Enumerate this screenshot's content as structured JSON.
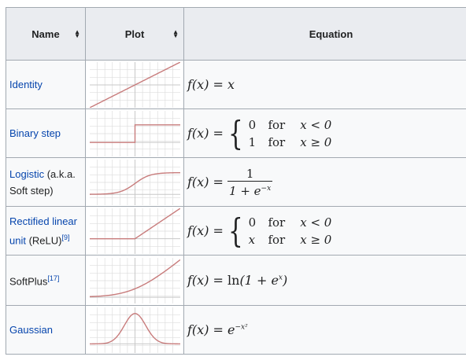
{
  "headers": {
    "name": "Name",
    "plot": "Plot",
    "equation": "Equation"
  },
  "rows": [
    {
      "name": "Identity",
      "plot": "identity-curve-icon",
      "eq": "f(x) = x"
    },
    {
      "name": "Binary step",
      "plot": "binary-step-curve-icon",
      "lhs": "f(x) =",
      "c1v": "0",
      "c1f": "for",
      "c1c": "x < 0",
      "c2v": "1",
      "c2f": "for",
      "c2c": "x ≥ 0"
    },
    {
      "name": "Logistic",
      "name_note": " (a.k.a. Soft step)",
      "plot": "logistic-curve-icon",
      "lhs": "f(x) =",
      "num": "1",
      "den": "1 + e",
      "den_sup": "−x"
    },
    {
      "name": "Rectified linear unit",
      "name_note": " (ReLU)",
      "ref": "[9]",
      "plot": "relu-curve-icon",
      "lhs": "f(x) =",
      "c1v": "0",
      "c1f": "for",
      "c1c": "x < 0",
      "c2v": "x",
      "c2f": "for",
      "c2c": "x ≥ 0"
    },
    {
      "name": "SoftPlus",
      "ref": "[17]",
      "plot": "softplus-curve-icon",
      "lhs": "f(x) = ",
      "fn": "ln",
      "rhs": "(1 + e",
      "rhs_sup": "x",
      "rhs_end": ")"
    },
    {
      "name": "Gaussian",
      "plot": "gaussian-curve-icon",
      "lhs": "f(x) = e",
      "sup": "−x²"
    }
  ],
  "colors": {
    "curve": "#c87c7c",
    "grid": "#dddddd",
    "link": "#0645ad",
    "header_bg": "#eaecf0",
    "cell_bg": "#f8f9fa",
    "border": "#a2a9b1"
  }
}
